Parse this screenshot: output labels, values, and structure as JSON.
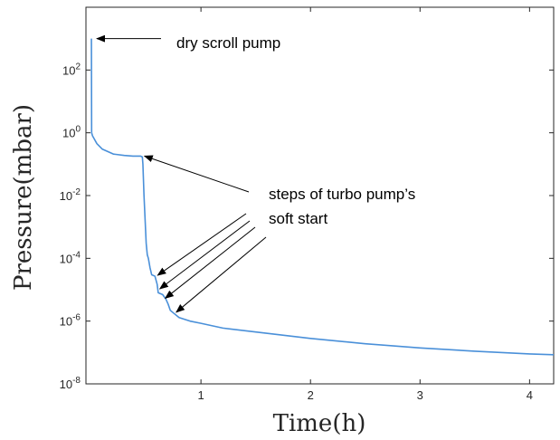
{
  "chart_data": {
    "type": "line",
    "title": "",
    "xlabel": "Time(h)",
    "ylabel": "Pressure(mbar)",
    "xlim": [
      -0.05,
      4.22
    ],
    "ylim": [
      1e-08,
      10000.0
    ],
    "yscale": "log",
    "grid": false,
    "legend": "none",
    "x_ticks": [
      {
        "value": 1,
        "label": "1"
      },
      {
        "value": 2,
        "label": "2"
      },
      {
        "value": 3,
        "label": "3"
      },
      {
        "value": 4,
        "label": "4"
      }
    ],
    "y_ticks": [
      {
        "value": 1e-08,
        "base": "10",
        "exp": "-8"
      },
      {
        "value": 1e-06,
        "base": "10",
        "exp": "-6"
      },
      {
        "value": 0.0001,
        "base": "10",
        "exp": "-4"
      },
      {
        "value": 0.01,
        "base": "10",
        "exp": "-2"
      },
      {
        "value": 1,
        "base": "10",
        "exp": "0"
      },
      {
        "value": 100,
        "base": "10",
        "exp": "2"
      }
    ],
    "series": [
      {
        "color": "#4a90d9",
        "x": [
          0.0,
          0.0,
          0.002,
          0.01,
          0.05,
          0.1,
          0.2,
          0.3,
          0.38,
          0.45,
          0.465,
          0.47,
          0.48,
          0.5,
          0.51,
          0.52,
          0.535,
          0.55,
          0.58,
          0.6,
          0.61,
          0.65,
          0.68,
          0.7,
          0.72,
          0.75,
          0.8,
          0.9,
          1.0,
          1.2,
          1.5,
          2.0,
          2.5,
          3.0,
          3.5,
          4.0,
          4.22
        ],
        "y": [
          1000,
          1000,
          1.0,
          0.8,
          0.45,
          0.3,
          0.21,
          0.19,
          0.18,
          0.18,
          0.17,
          0.1,
          0.01,
          0.0003,
          0.00013,
          0.0001,
          5e-05,
          3e-05,
          2.7e-05,
          1.5e-05,
          8e-06,
          7e-06,
          5e-06,
          3.5e-06,
          2.2e-06,
          1.8e-06,
          1.3e-06,
          1e-06,
          8.5e-07,
          6e-07,
          4.5e-07,
          2.8e-07,
          1.9e-07,
          1.4e-07,
          1.1e-07,
          9e-08,
          8.5e-08
        ]
      }
    ],
    "annotations": [
      {
        "text": "dry scroll pump",
        "lines": [
          "dry scroll pump"
        ],
        "target": {
          "x": 0.0,
          "y": 1000
        }
      },
      {
        "text": "steps of turbo pump’s soft start",
        "lines": [
          "steps of turbo pump’s",
          "soft start"
        ],
        "targets": [
          {
            "x": 0.46,
            "y": 0.17
          },
          {
            "x": 0.58,
            "y": 2.7e-05
          },
          {
            "x": 0.6,
            "y": 1e-05
          },
          {
            "x": 0.65,
            "y": 5e-06
          },
          {
            "x": 0.75,
            "y": 1.8e-06
          }
        ]
      }
    ]
  }
}
